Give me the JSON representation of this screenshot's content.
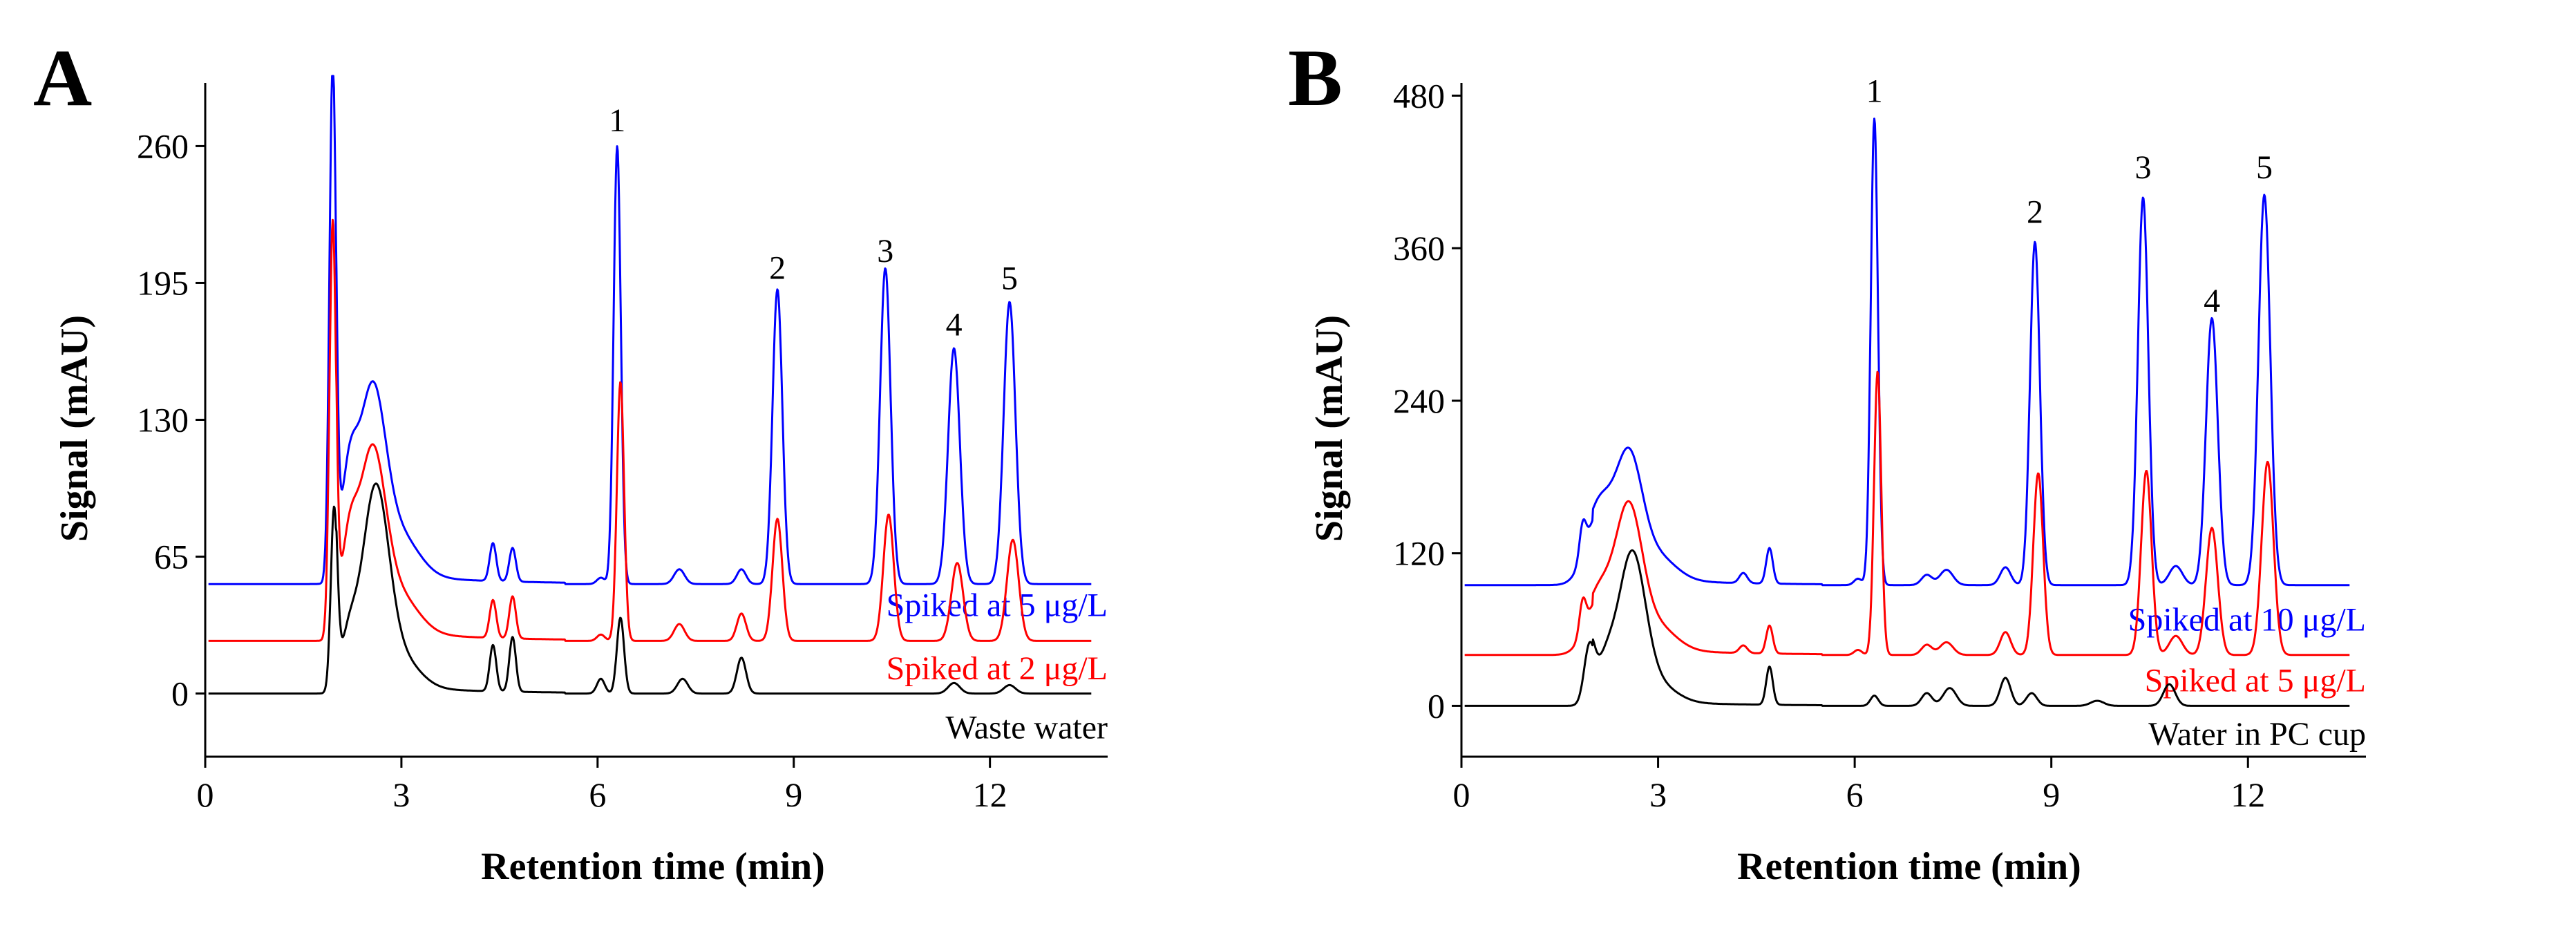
{
  "chart_data": [
    {
      "type": "line",
      "panel_label": "A",
      "xlabel": "Retention time (min)",
      "ylabel": "Signal (mAU)",
      "xlim": [
        0,
        13.8
      ],
      "ylim": [
        -30,
        290
      ],
      "xticks": [
        0,
        3,
        6,
        9,
        12
      ],
      "xtick_labels": [
        "0",
        "3",
        "6",
        "9",
        "12"
      ],
      "yticks": [
        0,
        65,
        130,
        195,
        260
      ],
      "ytick_labels": [
        "0",
        "65",
        "130",
        "195",
        "260"
      ],
      "grid": false,
      "peak_labels": [
        {
          "text": "1",
          "x": 6.3,
          "y": 267
        },
        {
          "text": "2",
          "x": 8.75,
          "y": 197
        },
        {
          "text": "3",
          "x": 10.4,
          "y": 205
        },
        {
          "text": "4",
          "x": 11.45,
          "y": 170
        },
        {
          "text": "5",
          "x": 12.3,
          "y": 192
        }
      ],
      "series": [
        {
          "name": "Spiked at 5 μg/L",
          "label": "Spiked at 5 μg/L",
          "label_y": 42,
          "color": "#0000ff",
          "baseline": 52,
          "peaks": [
            [
              1.95,
              245,
              0.05
            ],
            [
              2.2,
              40,
              0.12
            ],
            [
              2.55,
              82,
              0.2
            ],
            [
              2.95,
              20,
              0.3
            ],
            [
              4.4,
              18,
              0.05
            ],
            [
              4.7,
              16,
              0.05
            ],
            [
              6.05,
              3,
              0.06
            ],
            [
              6.3,
              208,
              0.055
            ],
            [
              7.25,
              7,
              0.08
            ],
            [
              8.2,
              7,
              0.07
            ],
            [
              8.75,
              140,
              0.075
            ],
            [
              10.4,
              150,
              0.08
            ],
            [
              11.45,
              112,
              0.09
            ],
            [
              12.3,
              134,
              0.09
            ]
          ]
        },
        {
          "name": "Spiked at 2 μg/L",
          "label": "Spiked at 2 μg/L",
          "label_y": 12,
          "color": "#ff0000",
          "baseline": 25,
          "peaks": [
            [
              1.95,
              195,
              0.05
            ],
            [
              2.2,
              35,
              0.12
            ],
            [
              2.55,
              80,
              0.2
            ],
            [
              2.95,
              18,
              0.3
            ],
            [
              4.4,
              18,
              0.05
            ],
            [
              4.7,
              20,
              0.05
            ],
            [
              6.05,
              3,
              0.06
            ],
            [
              6.35,
              123,
              0.055
            ],
            [
              7.25,
              8,
              0.08
            ],
            [
              8.2,
              13,
              0.07
            ],
            [
              8.75,
              58,
              0.075
            ],
            [
              10.45,
              60,
              0.08
            ],
            [
              11.5,
              37,
              0.09
            ],
            [
              12.35,
              48,
              0.09
            ]
          ]
        },
        {
          "name": "Waste water",
          "label": "Waste water",
          "label_y": -16,
          "color": "#000000",
          "baseline": 0,
          "peaks": [
            [
              1.97,
              85,
              0.05
            ],
            [
              2.2,
              20,
              0.12
            ],
            [
              2.6,
              88,
              0.2
            ],
            [
              2.95,
              15,
              0.3
            ],
            [
              4.4,
              22,
              0.05
            ],
            [
              4.7,
              26,
              0.05
            ],
            [
              6.05,
              7,
              0.06
            ],
            [
              6.35,
              36,
              0.055
            ],
            [
              7.3,
              7,
              0.08
            ],
            [
              8.2,
              17,
              0.07
            ],
            [
              11.45,
              5,
              0.09
            ],
            [
              12.3,
              4,
              0.09
            ]
          ]
        }
      ]
    },
    {
      "type": "line",
      "panel_label": "B",
      "xlabel": "Retention time (min)",
      "ylabel": "Signal (mAU)",
      "xlim": [
        0,
        13.8
      ],
      "ylim": [
        -40,
        490
      ],
      "xticks": [
        0,
        3,
        6,
        9,
        12
      ],
      "xtick_labels": [
        "0",
        "3",
        "6",
        "9",
        "12"
      ],
      "yticks": [
        0,
        120,
        240,
        360,
        480
      ],
      "ytick_labels": [
        "0",
        "120",
        "240",
        "360",
        "480"
      ],
      "grid": false,
      "peak_labels": [
        {
          "text": "1",
          "x": 6.3,
          "y": 475
        },
        {
          "text": "2",
          "x": 8.75,
          "y": 380
        },
        {
          "text": "3",
          "x": 10.4,
          "y": 415
        },
        {
          "text": "4",
          "x": 11.45,
          "y": 310
        },
        {
          "text": "5",
          "x": 12.25,
          "y": 415
        }
      ],
      "series": [
        {
          "name": "Spiked at 10 μg/L",
          "label": "Spiked at 10 μg/L",
          "label_y": 68,
          "color": "#0000ff",
          "baseline": 95,
          "peaks": [
            [
              1.85,
              25,
              0.05
            ],
            [
              2.1,
              55,
              0.2
            ],
            [
              2.55,
              90,
              0.2
            ],
            [
              2.95,
              20,
              0.3
            ],
            [
              4.3,
              8,
              0.06
            ],
            [
              4.7,
              28,
              0.05
            ],
            [
              6.05,
              5,
              0.06
            ],
            [
              6.3,
              367,
              0.055
            ],
            [
              7.1,
              8,
              0.08
            ],
            [
              7.4,
              12,
              0.1
            ],
            [
              8.3,
              14,
              0.08
            ],
            [
              8.75,
              270,
              0.075
            ],
            [
              10.4,
              305,
              0.08
            ],
            [
              10.9,
              15,
              0.1
            ],
            [
              11.45,
              210,
              0.09
            ],
            [
              12.25,
              307,
              0.09
            ]
          ]
        },
        {
          "name": "Spiked at 5 μg/L",
          "label": "Spiked at 5 μg/L",
          "label_y": 20,
          "color": "#ff0000",
          "baseline": 40,
          "peaks": [
            [
              1.85,
              25,
              0.05
            ],
            [
              2.1,
              42,
              0.2
            ],
            [
              2.55,
              104,
              0.2
            ],
            [
              2.95,
              20,
              0.3
            ],
            [
              4.3,
              6,
              0.06
            ],
            [
              4.7,
              22,
              0.05
            ],
            [
              6.05,
              4,
              0.06
            ],
            [
              6.35,
              223,
              0.055
            ],
            [
              7.1,
              8,
              0.08
            ],
            [
              7.4,
              10,
              0.1
            ],
            [
              8.3,
              18,
              0.08
            ],
            [
              8.8,
              143,
              0.075
            ],
            [
              10.45,
              145,
              0.08
            ],
            [
              10.9,
              15,
              0.1
            ],
            [
              11.45,
              100,
              0.09
            ],
            [
              12.3,
              152,
              0.09
            ]
          ]
        },
        {
          "name": "Water in PC cup",
          "label": "Water in PC cup",
          "label_y": -22,
          "color": "#000000",
          "baseline": 0,
          "peaks": [
            [
              1.95,
              42,
              0.08
            ],
            [
              2.2,
              28,
              0.15
            ],
            [
              2.6,
              110,
              0.2
            ],
            [
              2.95,
              15,
              0.3
            ],
            [
              4.7,
              30,
              0.05
            ],
            [
              6.3,
              8,
              0.06
            ],
            [
              7.1,
              10,
              0.08
            ],
            [
              7.45,
              14,
              0.1
            ],
            [
              8.3,
              22,
              0.08
            ],
            [
              8.7,
              10,
              0.08
            ],
            [
              9.7,
              4,
              0.1
            ],
            [
              10.8,
              17,
              0.09
            ]
          ]
        }
      ]
    }
  ]
}
